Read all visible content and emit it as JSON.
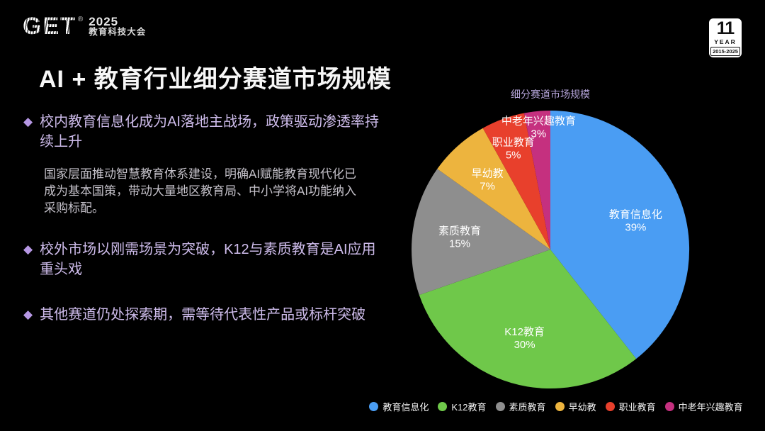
{
  "header": {
    "logo": {
      "brand": "GET",
      "reg": "®",
      "year": "2025",
      "subtitle": "教育科技大会"
    },
    "badge": {
      "number": "11",
      "year_label": "YEAR",
      "range": "2015-2025"
    }
  },
  "title": "AI + 教育行业细分赛道市场规模",
  "bullets": [
    {
      "marker": "◆",
      "text": "校内教育信息化成为AI落地主战场，政策驱动渗透率持续上升"
    },
    {
      "marker": "◆",
      "text": "校外市场以刚需场景为突破，K12与素质教育是AI应用重头戏"
    },
    {
      "marker": "◆",
      "text": "其他赛道仍处探索期，需等待代表性产品或标杆突破"
    }
  ],
  "bullet1_detail": "国家层面推动智慧教育体系建设，明确AI赋能教育现代化已成为基本国策，带动大量地区教育局、中小学将AI功能纳入采购标配。",
  "chart_data": {
    "type": "pie",
    "title": "细分赛道市场规模",
    "categories": [
      "教育信息化",
      "K12教育",
      "素质教育",
      "早幼教",
      "职业教育",
      "中老年兴趣教育"
    ],
    "values": [
      39,
      30,
      15,
      7,
      5,
      3
    ],
    "unit": "%",
    "colors": [
      "#4a9df3",
      "#6fc84a",
      "#8e8e8e",
      "#edb43e",
      "#e8402c",
      "#c5307f"
    ],
    "start_angle_deg": 0,
    "direction": "clockwise",
    "label_radius_factors": [
      0.65,
      0.66,
      0.66,
      0.68,
      0.78,
      0.89
    ],
    "legend_position": "bottom",
    "legend": [
      "教育信息化",
      "K12教育",
      "素质教育",
      "早幼教",
      "职业教育",
      "中老年兴趣教育"
    ]
  }
}
